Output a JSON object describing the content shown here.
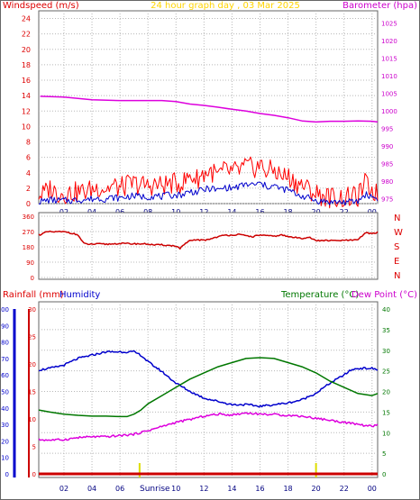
{
  "colors": {
    "wind_avg": "#0000cc",
    "wind_gust": "#ff0000",
    "barometer": "#dd00dd",
    "direction": "#cc0000",
    "rainfall": "#cc0000",
    "humidity": "#0000cc",
    "temperature": "#007700",
    "dewpoint": "#dd00dd",
    "sun": "#dddd00"
  },
  "chart_data": [
    {
      "type": "line",
      "title": "24 hour graph day , 03 Mar 2025",
      "left_axis_label": "Windspeed (m/s)",
      "right_axis_label": "Barometer (hpa)",
      "x_ticks": [
        "02",
        "04",
        "06",
        "08",
        "10",
        "12",
        "14",
        "16",
        "18",
        "20",
        "22",
        "00"
      ],
      "x_tick_hours": [
        2,
        4,
        6,
        8,
        10,
        12,
        14,
        16,
        18,
        20,
        22,
        24
      ],
      "x_range_hours": [
        0.2,
        24.4
      ],
      "y_left_ticks": [
        "0",
        "2",
        "4",
        "6",
        "8",
        "10",
        "12",
        "14",
        "16",
        "18",
        "20",
        "22",
        "24"
      ],
      "y_left_range": [
        0,
        25
      ],
      "y_right_ticks": [
        "975",
        "980",
        "985",
        "990",
        "995",
        "1000",
        "1005",
        "1010",
        "1015",
        "1020",
        "1025"
      ],
      "y_right_range": [
        973.6,
        1028.4
      ],
      "series": [
        {
          "key": "gust",
          "axis": "left",
          "x": [
            0.5,
            1,
            1.5,
            2,
            2.5,
            3,
            3.5,
            4,
            4.5,
            5,
            5.5,
            6,
            6.5,
            7,
            7.5,
            8,
            8.5,
            9,
            9.5,
            10,
            10.5,
            11,
            11.5,
            12,
            12.5,
            13,
            13.5,
            14,
            14.5,
            15,
            15.5,
            16,
            16.5,
            17,
            17.5,
            18,
            18.5,
            19,
            19.5,
            20,
            20.5,
            21,
            21.5,
            22,
            22.5,
            23,
            23.5,
            24,
            24.3
          ],
          "values": [
            1.2,
            2.0,
            1.4,
            1.3,
            1.4,
            1.5,
            1.6,
            1.8,
            2.2,
            1.9,
            2.3,
            2.0,
            2.4,
            2.6,
            2.4,
            2.3,
            2.5,
            2.3,
            2.6,
            2.6,
            2.7,
            3.6,
            3.2,
            3.9,
            4.2,
            3.6,
            4.3,
            4.1,
            4.3,
            4.8,
            4.6,
            5.0,
            4.2,
            4.4,
            3.6,
            3.5,
            2.8,
            2.4,
            1.8,
            1.3,
            1.0,
            0.8,
            0.8,
            0.7,
            0.8,
            0.9,
            2.6,
            1.8,
            1.3
          ]
        },
        {
          "key": "avg",
          "axis": "left",
          "x": [
            0.5,
            1,
            1.5,
            2,
            2.5,
            3,
            3.5,
            4,
            4.5,
            5,
            5.5,
            6,
            6.5,
            7,
            7.5,
            8,
            8.5,
            9,
            9.5,
            10,
            10.5,
            11,
            11.5,
            12,
            12.5,
            13,
            13.5,
            14,
            14.5,
            15,
            15.5,
            16,
            16.5,
            17,
            17.5,
            18,
            18.5,
            19,
            19.5,
            20,
            20.5,
            21,
            21.5,
            22,
            22.5,
            23,
            23.5,
            24,
            24.3
          ],
          "values": [
            0.3,
            0.5,
            0.4,
            0.4,
            0.4,
            0.5,
            0.5,
            0.6,
            0.7,
            0.6,
            0.8,
            0.7,
            0.9,
            1.0,
            0.9,
            0.9,
            1.0,
            0.9,
            1.1,
            1.1,
            1.2,
            1.6,
            1.5,
            1.8,
            2.0,
            1.7,
            2.1,
            2.0,
            2.2,
            2.5,
            2.4,
            2.6,
            2.2,
            2.3,
            1.9,
            1.8,
            1.3,
            1.0,
            0.7,
            0.4,
            0.3,
            0.2,
            0.2,
            0.2,
            0.2,
            0.3,
            1.2,
            0.9,
            0.7
          ]
        },
        {
          "key": "barometer",
          "axis": "right",
          "x": [
            0.3,
            2,
            4,
            6,
            8,
            9,
            10,
            11,
            12,
            13,
            14,
            15,
            16,
            17,
            18,
            19,
            20,
            21,
            22,
            23,
            24,
            24.4
          ],
          "values": [
            1004.1,
            1003.9,
            1003.1,
            1002.9,
            1002.9,
            1002.9,
            1002.6,
            1001.9,
            1001.5,
            1001.0,
            1000.4,
            999.9,
            999.2,
            998.7,
            998.0,
            997.1,
            996.8,
            997.0,
            997.0,
            997.1,
            997.0,
            996.8
          ]
        }
      ]
    },
    {
      "type": "line",
      "left_axis_label": "",
      "x_ticks": [
        "02",
        "04",
        "06",
        "08",
        "10",
        "12",
        "14",
        "16",
        "18",
        "20",
        "22",
        "00"
      ],
      "y_left_ticks": [
        "360",
        "270",
        "180",
        "90",
        "0"
      ],
      "y_left_range": [
        0,
        360
      ],
      "compass_labels": [
        "N",
        "W",
        "S",
        "E",
        "N"
      ],
      "series": [
        {
          "key": "direction",
          "x": [
            0.3,
            0.8,
            1.5,
            2.2,
            3,
            3.4,
            3.8,
            4.5,
            5,
            6,
            7,
            8,
            8.5,
            9,
            9.5,
            10,
            10.3,
            10.6,
            11,
            11.5,
            12,
            12.5,
            13,
            13.5,
            14,
            14.5,
            15,
            15.5,
            16,
            16.5,
            17,
            17.5,
            18,
            18.5,
            19,
            19.5,
            20,
            20.5,
            21,
            22,
            23,
            23.5,
            24,
            24.4
          ],
          "values": [
            252,
            268,
            268,
            268,
            250,
            200,
            195,
            197,
            195,
            200,
            198,
            197,
            190,
            192,
            188,
            185,
            170,
            195,
            215,
            222,
            218,
            228,
            240,
            248,
            250,
            252,
            245,
            240,
            250,
            245,
            242,
            250,
            240,
            235,
            230,
            238,
            215,
            218,
            216,
            218,
            220,
            262,
            258,
            265
          ]
        }
      ]
    },
    {
      "type": "line",
      "left_axis_label": "Rainfall (mm)",
      "left_axis_label2": "Humidity",
      "right_axis_label": "Temperature (°C)",
      "right_axis_label2": "Dew Point (°C)",
      "x_ticks": [
        "02",
        "04",
        "06",
        "08",
        "10",
        "12",
        "14",
        "16",
        "18",
        "20",
        "22",
        "00"
      ],
      "sunrise_label": "Sunrise",
      "sunrise_hour": 7.4,
      "sunset_hour": 20.0,
      "humidity_ticks": [
        "0",
        "10",
        "20",
        "30",
        "40",
        "50",
        "60",
        "70",
        "80",
        "90",
        "100"
      ],
      "humidity_range": [
        0,
        100
      ],
      "rain_ticks": [
        "0",
        "5",
        "10",
        "15",
        "20",
        "25",
        "30"
      ],
      "rain_range": [
        0,
        30
      ],
      "temp_ticks": [
        "0",
        "5",
        "10",
        "15",
        "20",
        "25",
        "30",
        "35",
        "40"
      ],
      "temp_range": [
        0,
        40
      ],
      "series": [
        {
          "key": "humidity",
          "axis": "humidity",
          "x": [
            0.2,
            1,
            2,
            3,
            4,
            5,
            6,
            6.5,
            7,
            7.5,
            8,
            9,
            10,
            11,
            12,
            13,
            14,
            15,
            16,
            17,
            18,
            19,
            20,
            21,
            22,
            22.5,
            23,
            24,
            24.4
          ],
          "values": [
            63,
            64,
            66,
            70,
            72,
            74,
            74,
            74,
            74,
            72,
            68,
            62,
            55,
            50,
            46,
            44,
            42,
            42,
            41,
            42,
            43,
            45,
            49,
            55,
            60,
            63,
            64,
            64,
            63
          ]
        },
        {
          "key": "temperature",
          "axis": "temp",
          "x": [
            0.2,
            1,
            2,
            3,
            4,
            5,
            6,
            6.5,
            7,
            7.5,
            8,
            9,
            10,
            11,
            12,
            13,
            14,
            15,
            16,
            17,
            18,
            19,
            20,
            21,
            22,
            23,
            24,
            24.4
          ],
          "values": [
            15.5,
            15.0,
            14.5,
            14.2,
            14.0,
            14.0,
            13.9,
            13.9,
            14.5,
            15.5,
            17.0,
            19.0,
            21.0,
            23.0,
            24.5,
            26.0,
            27.0,
            28.0,
            28.2,
            28.0,
            27.0,
            26.0,
            24.5,
            22.5,
            21.0,
            19.5,
            19.0,
            19.5
          ]
        },
        {
          "key": "dewpoint",
          "axis": "temp",
          "x": [
            0.2,
            1,
            2,
            3,
            4,
            5,
            6,
            7,
            8,
            9,
            10,
            11,
            12,
            13,
            14,
            15,
            16,
            17,
            18,
            19,
            20,
            21,
            22,
            23,
            24,
            24.4
          ],
          "values": [
            8.3,
            8.2,
            8.3,
            8.8,
            9.0,
            9.0,
            9.3,
            9.6,
            10.5,
            11.5,
            12.5,
            13.2,
            14.0,
            14.5,
            14.3,
            14.8,
            14.5,
            14.4,
            14.2,
            14.0,
            13.5,
            13.0,
            12.5,
            12.0,
            11.5,
            12.0
          ]
        },
        {
          "key": "rainfall",
          "axis": "rain",
          "x": [
            0.2,
            24.4
          ],
          "values": [
            0,
            0
          ]
        }
      ]
    }
  ]
}
